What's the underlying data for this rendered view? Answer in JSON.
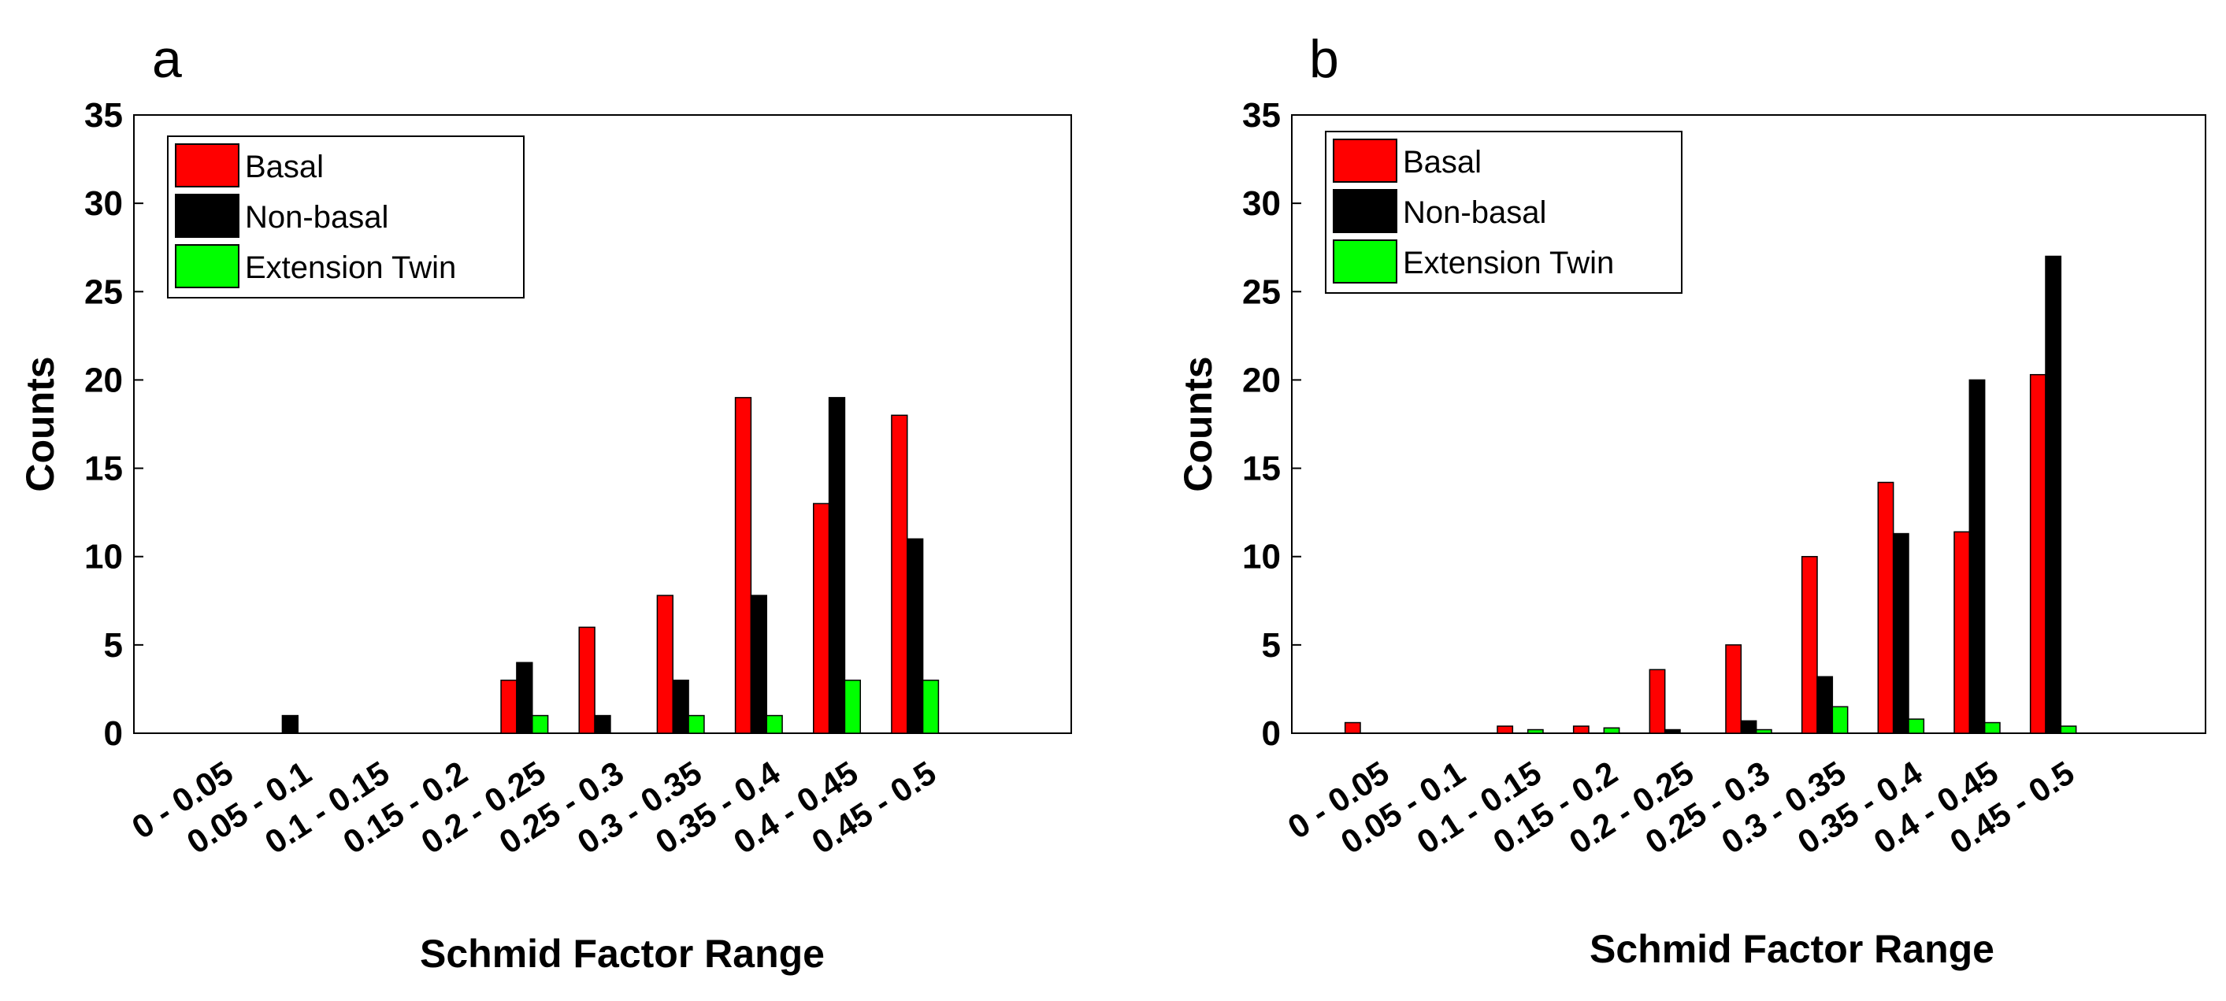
{
  "chart_data": [
    {
      "panel": "a",
      "type": "bar",
      "categories": [
        "0 - 0.05",
        "0.05 - 0.1",
        "0.1 - 0.15",
        "0.15 - 0.2",
        "0.2 - 0.25",
        "0.25 - 0.3",
        "0.3 - 0.35",
        "0.35 - 0.4",
        "0.4 - 0.45",
        "0.45 - 0.5"
      ],
      "series": [
        {
          "name": "Basal",
          "color": "#ff0000",
          "values": [
            0,
            0,
            0,
            0,
            3,
            6,
            7.8,
            19,
            13,
            18
          ]
        },
        {
          "name": "Non-basal",
          "color": "#000000",
          "values": [
            0,
            1,
            0,
            0,
            4,
            1,
            3,
            7.8,
            19,
            11
          ]
        },
        {
          "name": "Extension Twin",
          "color": "#00ff00",
          "values": [
            0,
            0,
            0,
            0,
            1,
            0,
            1,
            1,
            3,
            3
          ]
        }
      ],
      "xlabel": "Schmid Factor Range",
      "ylabel": "Counts",
      "ylim": [
        0,
        35
      ],
      "yticks": [
        0,
        5,
        10,
        15,
        20,
        25,
        30,
        35
      ],
      "legend_position": "top-left"
    },
    {
      "panel": "b",
      "type": "bar",
      "categories": [
        "0 - 0.05",
        "0.05 - 0.1",
        "0.1 - 0.15",
        "0.15 - 0.2",
        "0.2 - 0.25",
        "0.25 - 0.3",
        "0.3 - 0.35",
        "0.35 - 0.4",
        "0.4 - 0.45",
        "0.45 - 0.5"
      ],
      "series": [
        {
          "name": "Basal",
          "color": "#ff0000",
          "values": [
            0.6,
            0,
            0.4,
            0.4,
            3.6,
            5,
            10,
            14.2,
            11.4,
            20.3
          ]
        },
        {
          "name": "Non-basal",
          "color": "#000000",
          "values": [
            0,
            0,
            0,
            0,
            0.2,
            0.7,
            3.2,
            11.3,
            20,
            27
          ]
        },
        {
          "name": "Extension Twin",
          "color": "#00ff00",
          "values": [
            0,
            0,
            0.2,
            0.3,
            0,
            0.2,
            1.5,
            0.8,
            0.6,
            0.4
          ]
        }
      ],
      "xlabel": "Schmid Factor Range",
      "ylabel": "Counts",
      "ylim": [
        0,
        35
      ],
      "yticks": [
        0,
        5,
        10,
        15,
        20,
        25,
        30,
        35
      ],
      "legend_position": "top-left"
    }
  ]
}
